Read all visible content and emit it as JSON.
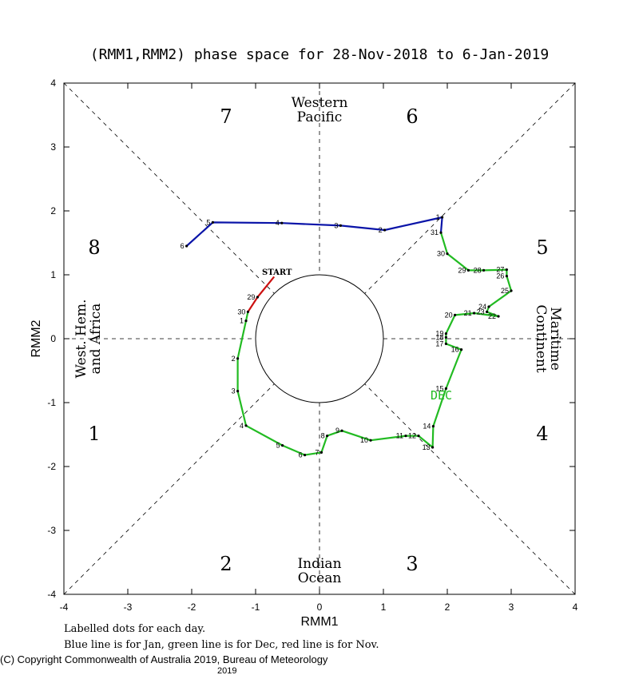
{
  "chart_data": {
    "type": "line",
    "title": "(RMM1,RMM2) phase space for 28-Nov-2018 to  6-Jan-2019",
    "xlabel": "RMM1",
    "ylabel": "RMM2",
    "xlim": [
      -4,
      4
    ],
    "ylim": [
      -4,
      4
    ],
    "x_ticks": [
      "-4",
      "-3",
      "-2",
      "-1",
      "0",
      "1",
      "2",
      "3",
      "4"
    ],
    "y_ticks": [
      "-4",
      "-3",
      "-2",
      "-1",
      "0",
      "1",
      "2",
      "3",
      "4"
    ],
    "phases": [
      "1",
      "2",
      "3",
      "4",
      "5",
      "6",
      "7",
      "8"
    ],
    "regions": {
      "western_pacific": [
        "Western",
        "Pacific"
      ],
      "indian_ocean": [
        "Indian",
        "Ocean"
      ],
      "maritime_continent": [
        "Maritime",
        "Continent"
      ],
      "west_hem": [
        "West. Hem.",
        "and Africa"
      ]
    },
    "start_label": "START",
    "month_label": "DEC",
    "series": [
      {
        "month": "Nov",
        "color": "#cc1111",
        "points": [
          {
            "day": "",
            "x": -0.71,
            "y": 0.97
          },
          {
            "day": "29",
            "x": -0.97,
            "y": 0.65
          },
          {
            "day": "30",
            "x": -1.12,
            "y": 0.42
          }
        ]
      },
      {
        "month": "Dec",
        "color": "#22bb22",
        "points": [
          {
            "day": "30",
            "x": -1.12,
            "y": 0.42
          },
          {
            "day": "1",
            "x": -1.15,
            "y": 0.28
          },
          {
            "day": "2",
            "x": -1.28,
            "y": -0.31
          },
          {
            "day": "3",
            "x": -1.28,
            "y": -0.82
          },
          {
            "day": "4",
            "x": -1.15,
            "y": -1.36
          },
          {
            "day": "5",
            "x": -0.58,
            "y": -1.67
          },
          {
            "day": "6",
            "x": -0.23,
            "y": -1.82
          },
          {
            "day": "7",
            "x": 0.03,
            "y": -1.78
          },
          {
            "day": "8",
            "x": 0.12,
            "y": -1.52
          },
          {
            "day": "9",
            "x": 0.35,
            "y": -1.44
          },
          {
            "day": "10",
            "x": 0.8,
            "y": -1.59
          },
          {
            "day": "11",
            "x": 1.35,
            "y": -1.52
          },
          {
            "day": "12",
            "x": 1.55,
            "y": -1.52
          },
          {
            "day": "13",
            "x": 1.77,
            "y": -1.7
          },
          {
            "day": "14",
            "x": 1.78,
            "y": -1.37
          },
          {
            "day": "15",
            "x": 1.98,
            "y": -0.78
          },
          {
            "day": "16",
            "x": 2.22,
            "y": -0.17
          },
          {
            "day": "17",
            "x": 1.98,
            "y": -0.08
          },
          {
            "day": "18",
            "x": 1.98,
            "y": 0.02
          },
          {
            "day": "19",
            "x": 1.98,
            "y": 0.08
          },
          {
            "day": "20",
            "x": 2.12,
            "y": 0.37
          },
          {
            "day": "21",
            "x": 2.42,
            "y": 0.4
          },
          {
            "day": "22",
            "x": 2.8,
            "y": 0.35
          },
          {
            "day": "23",
            "x": 2.62,
            "y": 0.42
          },
          {
            "day": "24",
            "x": 2.65,
            "y": 0.5
          },
          {
            "day": "25",
            "x": 3.0,
            "y": 0.75
          },
          {
            "day": "26",
            "x": 2.93,
            "y": 0.98
          },
          {
            "day": "27",
            "x": 2.93,
            "y": 1.08
          },
          {
            "day": "28",
            "x": 2.57,
            "y": 1.07
          },
          {
            "day": "29",
            "x": 2.33,
            "y": 1.07
          },
          {
            "day": "30",
            "x": 2.0,
            "y": 1.33
          },
          {
            "day": "31",
            "x": 1.9,
            "y": 1.66
          }
        ]
      },
      {
        "month": "Jan",
        "color": "#0a14a8",
        "points": [
          {
            "day": "31",
            "x": 1.9,
            "y": 1.66
          },
          {
            "day": "1",
            "x": 1.92,
            "y": 1.9
          },
          {
            "day": "2",
            "x": 1.02,
            "y": 1.7
          },
          {
            "day": "3",
            "x": 0.33,
            "y": 1.77
          },
          {
            "day": "4",
            "x": -0.59,
            "y": 1.81
          },
          {
            "day": "5",
            "x": -1.67,
            "y": 1.82
          },
          {
            "day": "6",
            "x": -2.08,
            "y": 1.45
          }
        ]
      }
    ]
  },
  "footer": {
    "line1": "Labelled dots for each day.",
    "line2": "Blue line is for Jan, green line is for Dec, red line is for Nov."
  },
  "copyright": "(C) Copyright Commonwealth of Australia 2019, Bureau of Meteorology",
  "copyright_year": "2019"
}
